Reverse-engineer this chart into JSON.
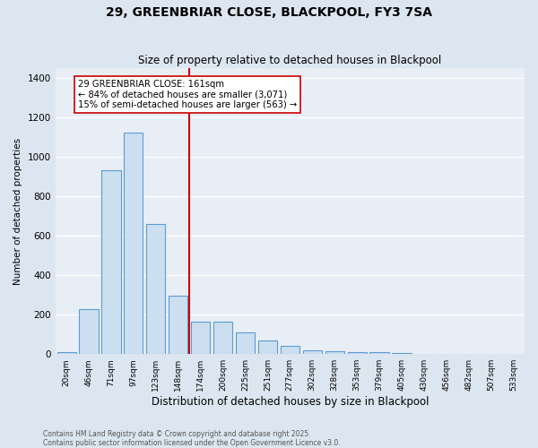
{
  "title": "29, GREENBRIAR CLOSE, BLACKPOOL, FY3 7SA",
  "subtitle": "Size of property relative to detached houses in Blackpool",
  "xlabel": "Distribution of detached houses by size in Blackpool",
  "ylabel": "Number of detached properties",
  "categories": [
    "20sqm",
    "46sqm",
    "71sqm",
    "97sqm",
    "123sqm",
    "148sqm",
    "174sqm",
    "200sqm",
    "225sqm",
    "251sqm",
    "277sqm",
    "302sqm",
    "328sqm",
    "353sqm",
    "379sqm",
    "405sqm",
    "430sqm",
    "456sqm",
    "482sqm",
    "507sqm",
    "533sqm"
  ],
  "values": [
    10,
    230,
    930,
    1120,
    660,
    295,
    163,
    163,
    110,
    70,
    40,
    18,
    15,
    12,
    8,
    4,
    0,
    0,
    2,
    0,
    0
  ],
  "bar_color": "#ccdff0",
  "bar_edge_color": "#5b9bd5",
  "bg_color": "#e8eef5",
  "grid_color": "#ffffff",
  "vline_x_index": 5,
  "vline_color": "#cc0000",
  "annotation_text": "29 GREENBRIAR CLOSE: 161sqm\n← 84% of detached houses are smaller (3,071)\n15% of semi-detached houses are larger (563) →",
  "annotation_box_color": "#ffffff",
  "annotation_box_edge": "#cc0000",
  "ylim": [
    0,
    1450
  ],
  "yticks": [
    0,
    200,
    400,
    600,
    800,
    1000,
    1200,
    1400
  ],
  "footnote": "Contains HM Land Registry data © Crown copyright and database right 2025.\nContains public sector information licensed under the Open Government Licence v3.0."
}
